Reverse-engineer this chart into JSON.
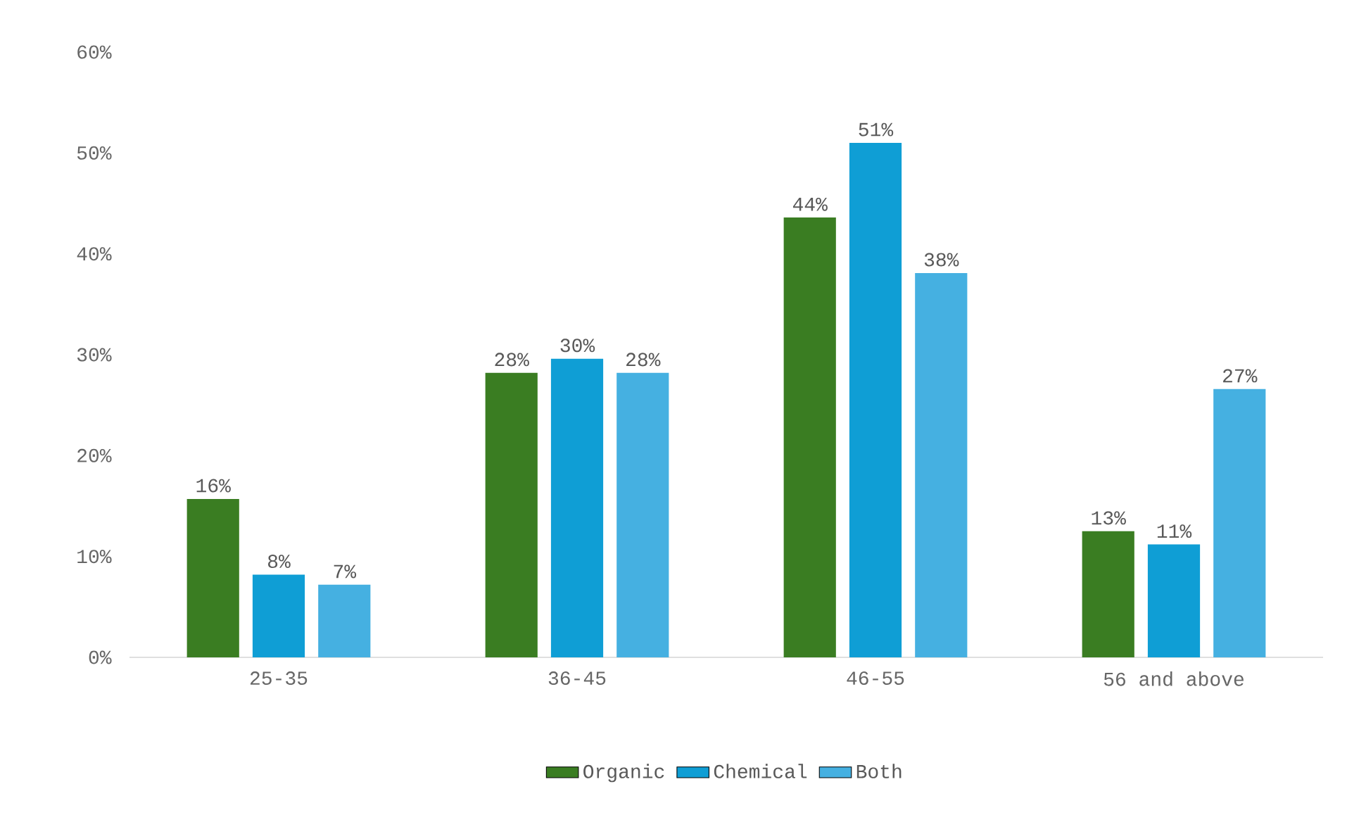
{
  "chart_data": {
    "type": "bar",
    "categories": [
      "25-35",
      "36-45",
      "46-55",
      "56 and above"
    ],
    "series": [
      {
        "name": "Organic",
        "color": "#3a7d22",
        "values": [
          15.7,
          28.2,
          43.6,
          12.5
        ],
        "value_labels": [
          "16%",
          "28%",
          "44%",
          "13%"
        ]
      },
      {
        "name": "Chemical",
        "color": "#0f9ed5",
        "values": [
          8.2,
          29.6,
          51.0,
          11.2
        ],
        "value_labels": [
          "8%",
          "30%",
          "51%",
          "11%"
        ]
      },
      {
        "name": "Both",
        "color": "#45b0e1",
        "values": [
          7.2,
          28.2,
          38.1,
          26.6
        ],
        "value_labels": [
          "7%",
          "28%",
          "38%",
          "27%"
        ]
      }
    ],
    "ylim": [
      0,
      60
    ],
    "yticks": [
      {
        "value": 0,
        "label": "0%"
      },
      {
        "value": 10,
        "label": "10%"
      },
      {
        "value": 20,
        "label": "20%"
      },
      {
        "value": 30,
        "label": "30%"
      },
      {
        "value": 40,
        "label": "40%"
      },
      {
        "value": 50,
        "label": "50%"
      },
      {
        "value": 60,
        "label": "60%"
      }
    ],
    "grid": false,
    "legend": "bottom"
  }
}
